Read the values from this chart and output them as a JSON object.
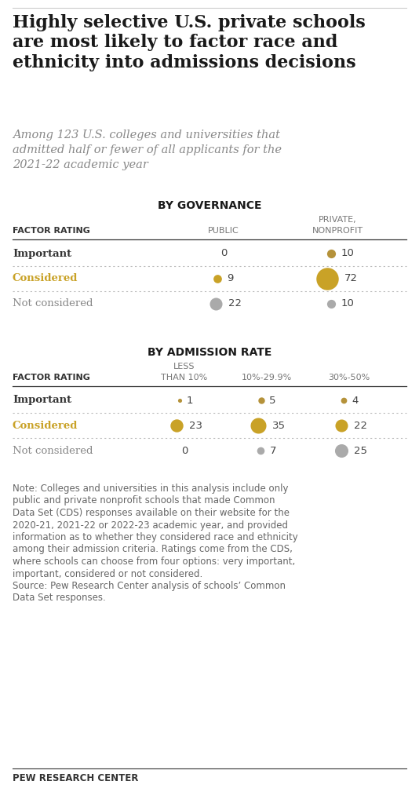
{
  "title": "Highly selective U.S. private schools\nare most likely to factor race and\nethnicity into admissions decisions",
  "subtitle": "Among 123 U.S. colleges and universities that\nadmitted half or fewer of all applicants for the\n2021-22 academic year",
  "gov_section_title": "BY GOVERNANCE",
  "gov_col_headers_row1": [
    "",
    "",
    "PRIVATE,"
  ],
  "gov_col_headers_row2": [
    "FACTOR RATING",
    "PUBLIC",
    "NONPROFIT"
  ],
  "gov_rows": [
    {
      "label": "Important",
      "label_color": "#333333",
      "label_bold": true,
      "values": [
        0,
        10
      ],
      "dot_color": "#b5923a"
    },
    {
      "label": "Considered",
      "label_color": "#c9a227",
      "label_bold": true,
      "values": [
        9,
        72
      ],
      "dot_color": "#c9a227"
    },
    {
      "label": "Not considered",
      "label_color": "#888888",
      "label_bold": false,
      "values": [
        22,
        10
      ],
      "dot_color": "#aaaaaa"
    }
  ],
  "rate_section_title": "BY ADMISSION RATE",
  "rate_col_headers_row1": [
    "",
    "LESS",
    "",
    ""
  ],
  "rate_col_headers_row2": [
    "FACTOR RATING",
    "THAN 10%",
    "10%-29.9%",
    "30%-50%"
  ],
  "rate_rows": [
    {
      "label": "Important",
      "label_color": "#333333",
      "label_bold": true,
      "values": [
        1,
        5,
        4
      ],
      "dot_color": "#b5923a"
    },
    {
      "label": "Considered",
      "label_color": "#c9a227",
      "label_bold": true,
      "values": [
        23,
        35,
        22
      ],
      "dot_color": "#c9a227"
    },
    {
      "label": "Not considered",
      "label_color": "#888888",
      "label_bold": false,
      "values": [
        0,
        7,
        25
      ],
      "dot_color": "#aaaaaa"
    }
  ],
  "note_line1": "Note: Colleges and universities in this analysis include only",
  "note_line2": "public and private nonprofit schools that made Common",
  "note_line3": "Data Set (CDS) responses available on their website for the",
  "note_line4": "2020-21, 2021-22 or 2022-23 academic year, and provided",
  "note_line5": "information as to whether they considered race and ethnicity",
  "note_line6": "among their admission criteria. Ratings come from the CDS,",
  "note_line7": "where schools can choose from four options: very important,",
  "note_line8": "important, considered or not considered.",
  "note_line9": "Source: Pew Research Center analysis of schools’ Common",
  "note_line10": "Data Set responses.",
  "footer": "PEW RESEARCH CENTER",
  "bg_color": "#ffffff",
  "text_color": "#333333",
  "header_color": "#777777",
  "dotted_line_color": "#bbbbbb",
  "solid_line_color": "#333333",
  "max_dot_value": 72,
  "max_dot_size": 420,
  "min_dot_size": 8
}
